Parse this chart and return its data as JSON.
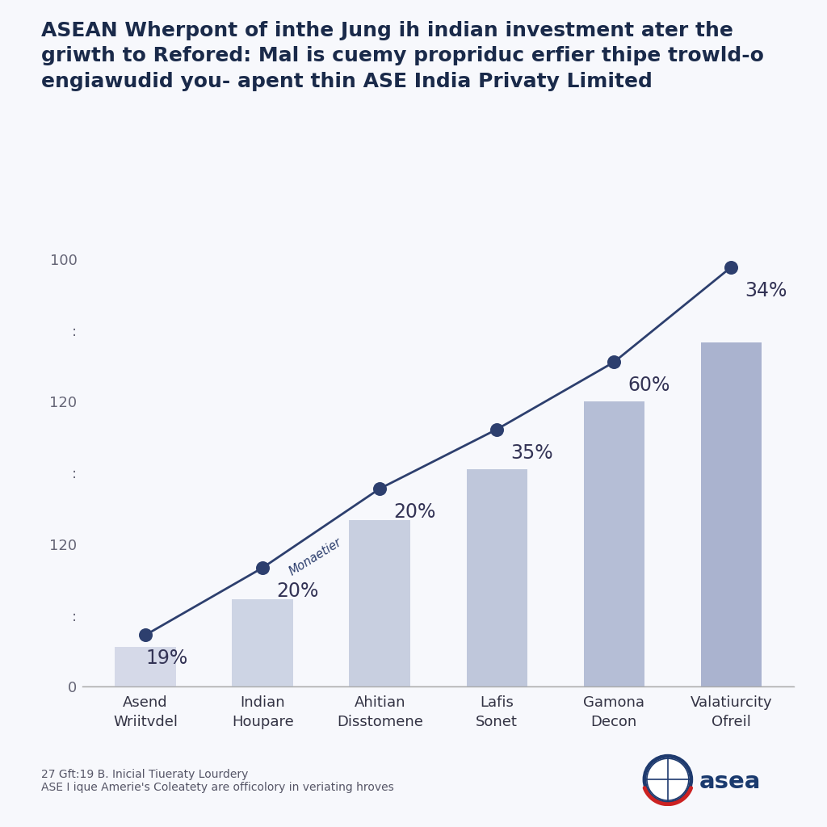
{
  "title_line1": "ASEAN Wherpont of inthe Jung ih indian investment ater the",
  "title_line2": "griwth to Refored: Mal is cuemy propriduc erfier thipe trowld-o",
  "title_line3": "engiawudid you- apent thin ASE India Privaty Limited",
  "categories": [
    "Asend\nWriitvdel",
    "Indian\nHoupare",
    "Ahitian\nDisstomene",
    "Lafis\nSonet",
    "Gamona\nDecon",
    "Valatiurcity\nOfreil"
  ],
  "bar_values": [
    10,
    22,
    42,
    55,
    72,
    87
  ],
  "line_values": [
    13,
    30,
    50,
    65,
    82,
    106
  ],
  "percentages": [
    "19%",
    "20%",
    "20%",
    "35%",
    "60%",
    "34%"
  ],
  "line_label": "Monaetier",
  "bar_colors": [
    "#d5d9e8",
    "#cdd4e4",
    "#c8cfe0",
    "#bfc7db",
    "#b5bed6",
    "#aab3cf"
  ],
  "line_color": "#2d3f6e",
  "dot_color": "#2d3f6e",
  "title_color": "#1a2a4a",
  "text_color": "#333355",
  "background_color": "#f7f8fc",
  "footer_line1": "27 Gft:19 B. Inicial Tiueraty Lourdery",
  "footer_line2": "ASE I ique Amerie's Coleatety are officolory in veriating hroves",
  "ytick_positions": [
    0,
    18,
    36,
    54,
    72,
    90,
    108
  ],
  "ytick_labels": [
    "0",
    ":",
    "120",
    ":",
    "120",
    ":",
    "100"
  ],
  "ylim_max": 115,
  "title_fontsize": 18,
  "axis_fontsize": 13,
  "pct_fontsize": 17,
  "bar_width": 0.52
}
